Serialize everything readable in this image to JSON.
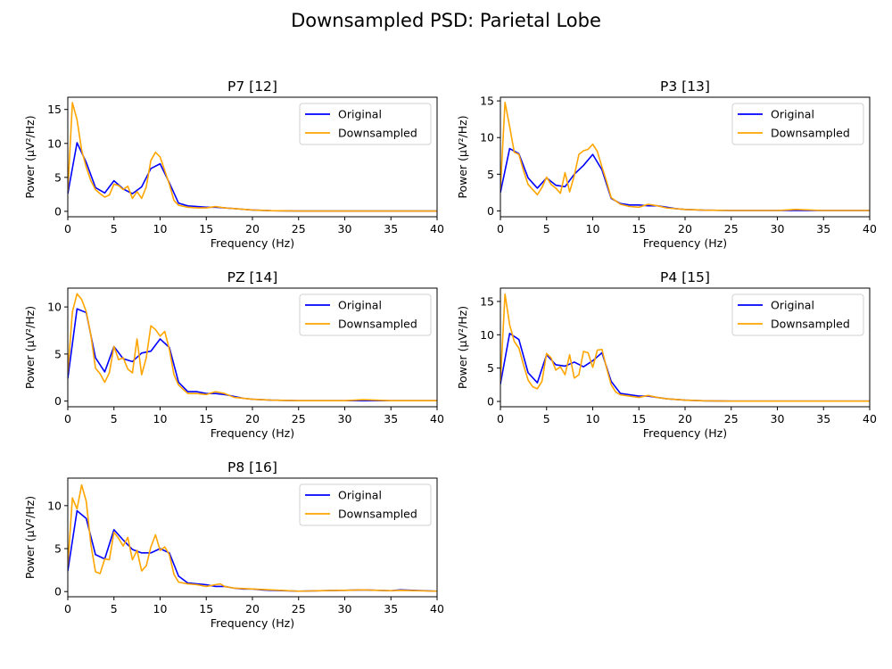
{
  "figure": {
    "suptitle": "Downsampled PSD: Parietal Lobe"
  },
  "colors": {
    "original": "#0000ff",
    "downsampled": "#ffa500"
  },
  "chart_data": [
    {
      "type": "line",
      "title": "P7 [12]",
      "xlabel": "Frequency (Hz)",
      "ylabel": "Power (µV²/Hz)",
      "xlim": [
        0,
        40
      ],
      "ylim": [
        -0.8,
        16.8
      ],
      "xticks": [
        0,
        5,
        10,
        15,
        20,
        25,
        30,
        35,
        40
      ],
      "yticks": [
        0,
        5,
        10,
        15
      ],
      "legend": "upper-right",
      "series": [
        {
          "name": "Original",
          "color": "#0000ff",
          "x": [
            0,
            1,
            2,
            3,
            4,
            5,
            6,
            7,
            8,
            9,
            10,
            11,
            12,
            13,
            14,
            15,
            16,
            17,
            18,
            19,
            20,
            21,
            22,
            25,
            30,
            35,
            40
          ],
          "y": [
            2.6,
            10.1,
            7.2,
            3.5,
            2.7,
            4.5,
            3.3,
            2.6,
            3.6,
            6.3,
            7.0,
            4.2,
            1.2,
            0.8,
            0.7,
            0.6,
            0.6,
            0.5,
            0.4,
            0.3,
            0.2,
            0.15,
            0.1,
            0.05,
            0.05,
            0.05,
            0.05
          ]
        },
        {
          "name": "Downsampled",
          "color": "#ffa500",
          "x": [
            0,
            0.5,
            1,
            1.5,
            2,
            2.5,
            3,
            3.5,
            4,
            4.5,
            5,
            5.5,
            6,
            6.5,
            7,
            7.5,
            8,
            8.5,
            9,
            9.5,
            10,
            10.5,
            11,
            11.5,
            12,
            13,
            14,
            15,
            16,
            17,
            18,
            20,
            22,
            25,
            30,
            35,
            40
          ],
          "y": [
            3.0,
            16.0,
            13.5,
            9.0,
            6.5,
            4.5,
            3.2,
            2.6,
            2.1,
            2.4,
            4.0,
            3.8,
            3.2,
            3.7,
            1.9,
            2.9,
            1.9,
            3.6,
            7.5,
            8.7,
            8.0,
            6.0,
            4.0,
            1.6,
            0.9,
            0.6,
            0.5,
            0.5,
            0.7,
            0.5,
            0.4,
            0.2,
            0.1,
            0.05,
            0.05,
            0.05,
            0.05
          ]
        }
      ]
    },
    {
      "type": "line",
      "title": "P3 [13]",
      "xlabel": "Frequency (Hz)",
      "ylabel": "Power (µV²/Hz)",
      "xlim": [
        0,
        40
      ],
      "ylim": [
        -0.8,
        15.5
      ],
      "xticks": [
        0,
        5,
        10,
        15,
        20,
        25,
        30,
        35,
        40
      ],
      "yticks": [
        0,
        5,
        10,
        15
      ],
      "legend": "upper-right",
      "series": [
        {
          "name": "Original",
          "color": "#0000ff",
          "x": [
            0,
            1,
            2,
            3,
            4,
            5,
            6,
            7,
            8,
            9,
            10,
            11,
            12,
            13,
            14,
            15,
            16,
            17,
            18,
            19,
            20,
            21,
            22,
            25,
            30,
            35,
            40
          ],
          "y": [
            2.5,
            8.5,
            7.8,
            4.5,
            3.1,
            4.5,
            3.5,
            3.3,
            5.0,
            6.2,
            7.7,
            5.6,
            1.7,
            1.0,
            0.8,
            0.8,
            0.7,
            0.7,
            0.5,
            0.3,
            0.2,
            0.15,
            0.1,
            0.05,
            0.05,
            0.05,
            0.05
          ]
        },
        {
          "name": "Downsampled",
          "color": "#ffa500",
          "x": [
            0,
            0.5,
            1,
            1.5,
            2,
            2.5,
            3,
            3.5,
            4,
            4.5,
            5,
            5.5,
            6,
            6.5,
            7,
            7.5,
            8,
            8.5,
            9,
            9.5,
            10,
            10.5,
            11,
            11.5,
            12,
            13,
            14,
            15,
            16,
            17,
            18,
            20,
            22,
            25,
            30,
            32,
            35,
            40
          ],
          "y": [
            3.0,
            14.8,
            11.5,
            8.0,
            7.7,
            5.5,
            3.6,
            2.9,
            2.2,
            3.2,
            4.6,
            3.6,
            3.1,
            2.4,
            5.2,
            2.6,
            4.8,
            7.7,
            8.2,
            8.4,
            9.1,
            8.1,
            6.0,
            4.0,
            1.8,
            0.9,
            0.6,
            0.5,
            0.9,
            0.7,
            0.4,
            0.2,
            0.1,
            0.05,
            0.05,
            0.2,
            0.05,
            0.05
          ]
        }
      ]
    },
    {
      "type": "line",
      "title": "PZ [14]",
      "xlabel": "Frequency (Hz)",
      "ylabel": "Power (µV²/Hz)",
      "xlim": [
        0,
        40
      ],
      "ylim": [
        -0.6,
        12.0
      ],
      "xticks": [
        0,
        5,
        10,
        15,
        20,
        25,
        30,
        35,
        40
      ],
      "yticks": [
        0,
        5,
        10
      ],
      "legend": "upper-right",
      "series": [
        {
          "name": "Original",
          "color": "#0000ff",
          "x": [
            0,
            1,
            2,
            3,
            4,
            5,
            6,
            7,
            8,
            9,
            10,
            11,
            12,
            13,
            14,
            15,
            16,
            17,
            18,
            19,
            20,
            21,
            22,
            25,
            30,
            35,
            40
          ],
          "y": [
            2.4,
            9.8,
            9.4,
            4.6,
            3.1,
            5.8,
            4.5,
            4.2,
            5.1,
            5.3,
            6.6,
            5.7,
            2.0,
            1.0,
            1.0,
            0.8,
            0.8,
            0.7,
            0.5,
            0.3,
            0.2,
            0.15,
            0.1,
            0.05,
            0.05,
            0.05,
            0.05
          ]
        },
        {
          "name": "Downsampled",
          "color": "#ffa500",
          "x": [
            0,
            0.5,
            1,
            1.5,
            2,
            2.5,
            3,
            3.5,
            4,
            4.5,
            5,
            5.5,
            6,
            6.5,
            7,
            7.5,
            8,
            8.5,
            9,
            9.5,
            10,
            10.5,
            11,
            11.5,
            12,
            13,
            14,
            15,
            16,
            17,
            18,
            20,
            22,
            25,
            30,
            32,
            35,
            40
          ],
          "y": [
            3.0,
            9.5,
            11.4,
            10.8,
            9.5,
            7.0,
            3.5,
            2.9,
            2.0,
            3.0,
            5.8,
            4.4,
            4.6,
            3.4,
            3.0,
            6.6,
            2.8,
            4.6,
            8.0,
            7.6,
            6.9,
            7.4,
            5.5,
            2.8,
            1.7,
            0.8,
            0.8,
            0.7,
            1.0,
            0.8,
            0.4,
            0.2,
            0.1,
            0.05,
            0.05,
            0.15,
            0.05,
            0.05
          ]
        }
      ]
    },
    {
      "type": "line",
      "title": "P4 [15]",
      "xlabel": "Frequency (Hz)",
      "ylabel": "Power (µV²/Hz)",
      "xlim": [
        0,
        40
      ],
      "ylim": [
        -0.8,
        17.0
      ],
      "xticks": [
        0,
        5,
        10,
        15,
        20,
        25,
        30,
        35,
        40
      ],
      "yticks": [
        0,
        5,
        10,
        15
      ],
      "legend": "upper-right",
      "series": [
        {
          "name": "Original",
          "color": "#0000ff",
          "x": [
            0,
            1,
            2,
            3,
            4,
            5,
            6,
            7,
            8,
            9,
            10,
            11,
            12,
            13,
            14,
            15,
            16,
            17,
            18,
            19,
            20,
            21,
            22,
            25,
            30,
            35,
            40
          ],
          "y": [
            2.6,
            10.2,
            9.3,
            4.3,
            2.8,
            7.0,
            5.5,
            5.3,
            5.9,
            5.2,
            6.1,
            7.3,
            3.0,
            1.2,
            1.0,
            0.8,
            0.8,
            0.6,
            0.4,
            0.3,
            0.2,
            0.15,
            0.1,
            0.05,
            0.05,
            0.05,
            0.05
          ]
        },
        {
          "name": "Downsampled",
          "color": "#ffa500",
          "x": [
            0,
            0.5,
            1,
            1.5,
            2,
            2.5,
            3,
            3.5,
            4,
            4.5,
            5,
            5.5,
            6,
            6.5,
            7,
            7.5,
            8,
            8.5,
            9,
            9.5,
            10,
            10.5,
            11,
            11.5,
            12,
            12.5,
            13,
            14,
            15,
            16,
            17,
            18,
            20,
            22,
            25,
            30,
            35,
            40
          ],
          "y": [
            3.0,
            16.1,
            11.5,
            9.0,
            8.0,
            5.5,
            3.2,
            2.2,
            1.9,
            3.0,
            7.2,
            6.5,
            4.7,
            5.2,
            4.0,
            7.0,
            3.5,
            4.0,
            7.5,
            7.3,
            5.1,
            7.7,
            7.8,
            5.0,
            2.5,
            1.4,
            1.0,
            0.8,
            0.6,
            0.9,
            0.6,
            0.4,
            0.2,
            0.1,
            0.05,
            0.05,
            0.05,
            0.05
          ]
        }
      ]
    },
    {
      "type": "line",
      "title": "P8 [16]",
      "xlabel": "Frequency (Hz)",
      "ylabel": "Power (µV²/Hz)",
      "xlim": [
        0,
        40
      ],
      "ylim": [
        -0.6,
        13.2
      ],
      "xticks": [
        0,
        5,
        10,
        15,
        20,
        25,
        30,
        35,
        40
      ],
      "yticks": [
        0,
        5,
        10
      ],
      "legend": "upper-right",
      "series": [
        {
          "name": "Original",
          "color": "#0000ff",
          "x": [
            0,
            1,
            2,
            3,
            4,
            5,
            6,
            7,
            8,
            9,
            10,
            11,
            12,
            13,
            14,
            15,
            16,
            17,
            18,
            19,
            20,
            21,
            22,
            25,
            30,
            32,
            35,
            36,
            40
          ],
          "y": [
            2.4,
            9.4,
            8.5,
            4.3,
            3.8,
            7.2,
            6.0,
            4.9,
            4.5,
            4.5,
            5.0,
            4.5,
            1.8,
            1.0,
            0.9,
            0.8,
            0.6,
            0.6,
            0.4,
            0.3,
            0.3,
            0.2,
            0.15,
            0.05,
            0.15,
            0.2,
            0.1,
            0.2,
            0.05
          ]
        },
        {
          "name": "Downsampled",
          "color": "#ffa500",
          "x": [
            0,
            0.5,
            1,
            1.5,
            2,
            2.5,
            3,
            3.5,
            4,
            4.5,
            5,
            5.5,
            6,
            6.5,
            7,
            7.5,
            8,
            8.5,
            9,
            9.5,
            10,
            10.5,
            11,
            11.5,
            12,
            13,
            14,
            15,
            16,
            16.5,
            17,
            18,
            20,
            22,
            25,
            30,
            32,
            35,
            36,
            40
          ],
          "y": [
            3.0,
            10.9,
            9.6,
            12.4,
            10.5,
            5.5,
            2.3,
            2.1,
            3.8,
            3.7,
            6.9,
            6.2,
            5.3,
            6.3,
            3.7,
            4.8,
            2.4,
            3.0,
            5.2,
            6.6,
            4.8,
            5.2,
            4.3,
            2.0,
            1.1,
            0.9,
            0.8,
            0.6,
            0.8,
            0.9,
            0.6,
            0.4,
            0.3,
            0.2,
            0.05,
            0.15,
            0.2,
            0.1,
            0.15,
            0.05
          ]
        }
      ]
    }
  ]
}
